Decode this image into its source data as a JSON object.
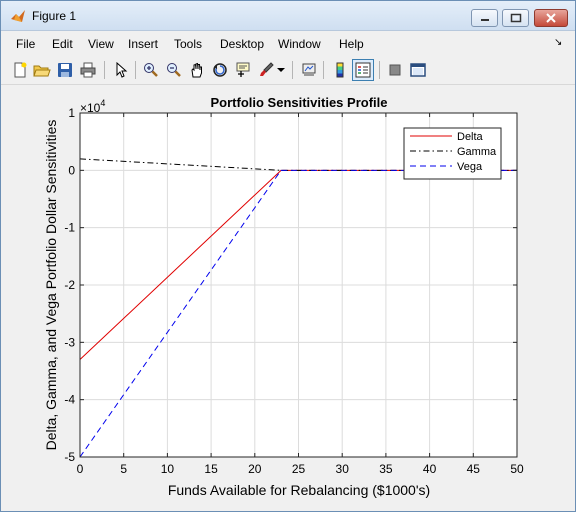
{
  "window": {
    "title": "Figure 1"
  },
  "menu": {
    "items": [
      "File",
      "Edit",
      "View",
      "Insert",
      "Tools",
      "Desktop",
      "Window",
      "Help"
    ]
  },
  "toolbar": {
    "icons": [
      "new-figure-icon",
      "open-icon",
      "save-icon",
      "print-icon",
      "pointer-icon",
      "zoom-in-icon",
      "zoom-out-icon",
      "pan-icon",
      "rotate-icon",
      "data-cursor-icon",
      "brush-icon",
      "dropdown-arrow-icon",
      "link-plot-icon",
      "colorbar-icon",
      "legend-icon",
      "hide-plot-tools-icon",
      "show-plot-tools-icon"
    ]
  },
  "chart_data": {
    "type": "line",
    "title": "Portfolio Sensitivities Profile",
    "xlabel": "Funds Available for Rebalancing ($1000's)",
    "ylabel": "Delta, Gamma, and Vega Portfolio Dollar Sensitivities",
    "y_multiplier": "×10",
    "y_multiplier_exponent": "4",
    "xlim": [
      0,
      50
    ],
    "ylim": [
      -5,
      1
    ],
    "xticks": [
      "0",
      "5",
      "10",
      "15",
      "20",
      "25",
      "30",
      "35",
      "40",
      "45",
      "50"
    ],
    "yticks": [
      "1",
      "0",
      "-1",
      "-2",
      "-3",
      "-4",
      "-5"
    ],
    "grid": true,
    "legend_position": "top-right",
    "series": [
      {
        "name": "Delta",
        "color": "#e00000",
        "style": "solid",
        "x": [
          0,
          23,
          50
        ],
        "y": [
          -3.3,
          0,
          0
        ]
      },
      {
        "name": "Gamma",
        "color": "#000000",
        "style": "dashdot",
        "x": [
          0,
          23,
          50
        ],
        "y": [
          0.2,
          0,
          0
        ]
      },
      {
        "name": "Vega",
        "color": "#0000ee",
        "style": "dashed",
        "x": [
          0,
          23,
          50
        ],
        "y": [
          -5,
          0,
          0
        ]
      }
    ]
  }
}
